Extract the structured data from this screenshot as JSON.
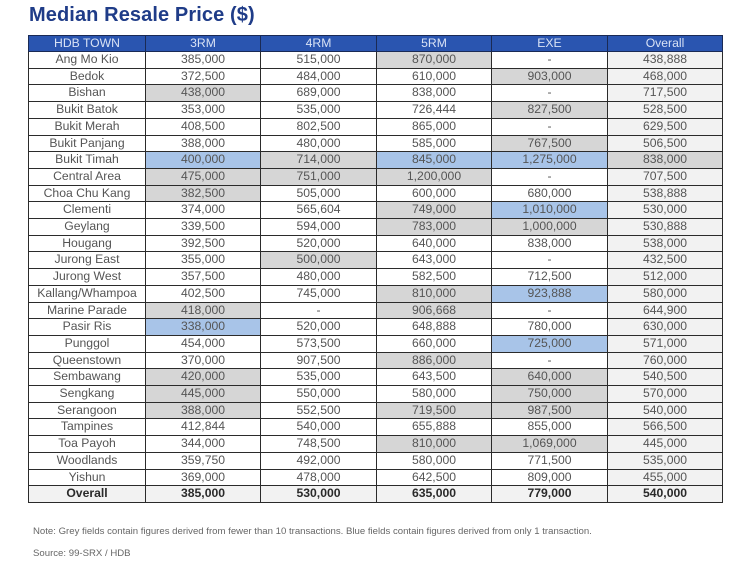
{
  "title": "Median Resale Price ($)",
  "table": {
    "headers": [
      "HDB TOWN",
      "3RM",
      "4RM",
      "5RM",
      "EXE",
      "Overall"
    ],
    "rows": [
      {
        "town": "Ang Mo Kio",
        "cells": [
          "385,000",
          "515,000",
          "870,000",
          "-",
          "438,888"
        ],
        "shade": [
          "",
          "",
          "grey",
          "",
          ""
        ]
      },
      {
        "town": "Bedok",
        "cells": [
          "372,500",
          "484,000",
          "610,000",
          "903,000",
          "468,000"
        ],
        "shade": [
          "",
          "",
          "",
          "grey",
          ""
        ]
      },
      {
        "town": "Bishan",
        "cells": [
          "438,000",
          "689,000",
          "838,000",
          "-",
          "717,500"
        ],
        "shade": [
          "grey",
          "",
          "",
          "",
          ""
        ]
      },
      {
        "town": "Bukit Batok",
        "cells": [
          "353,000",
          "535,000",
          "726,444",
          "827,500",
          "528,500"
        ],
        "shade": [
          "",
          "",
          "",
          "grey",
          ""
        ]
      },
      {
        "town": "Bukit Merah",
        "cells": [
          "408,500",
          "802,500",
          "865,000",
          "-",
          "629,500"
        ],
        "shade": [
          "",
          "",
          "",
          "",
          ""
        ]
      },
      {
        "town": "Bukit Panjang",
        "cells": [
          "388,000",
          "480,000",
          "585,000",
          "767,500",
          "506,500"
        ],
        "shade": [
          "",
          "",
          "",
          "grey",
          ""
        ]
      },
      {
        "town": "Bukit Timah",
        "cells": [
          "400,000",
          "714,000",
          "845,000",
          "1,275,000",
          "838,000"
        ],
        "shade": [
          "blue",
          "grey",
          "blue",
          "blue",
          "grey"
        ]
      },
      {
        "town": "Central Area",
        "cells": [
          "475,000",
          "751,000",
          "1,200,000",
          "-",
          "707,500"
        ],
        "shade": [
          "grey",
          "grey",
          "grey",
          "",
          ""
        ]
      },
      {
        "town": "Choa Chu Kang",
        "cells": [
          "382,500",
          "505,000",
          "600,000",
          "680,000",
          "538,888"
        ],
        "shade": [
          "grey",
          "",
          "",
          "",
          ""
        ]
      },
      {
        "town": "Clementi",
        "cells": [
          "374,000",
          "565,604",
          "749,000",
          "1,010,000",
          "530,000"
        ],
        "shade": [
          "",
          "",
          "grey",
          "blue",
          ""
        ]
      },
      {
        "town": "Geylang",
        "cells": [
          "339,500",
          "594,000",
          "783,000",
          "1,000,000",
          "530,888"
        ],
        "shade": [
          "",
          "",
          "grey",
          "grey",
          ""
        ]
      },
      {
        "town": "Hougang",
        "cells": [
          "392,500",
          "520,000",
          "640,000",
          "838,000",
          "538,000"
        ],
        "shade": [
          "",
          "",
          "",
          "",
          ""
        ]
      },
      {
        "town": "Jurong East",
        "cells": [
          "355,000",
          "500,000",
          "643,000",
          "-",
          "432,500"
        ],
        "shade": [
          "",
          "grey",
          "",
          "",
          ""
        ]
      },
      {
        "town": "Jurong West",
        "cells": [
          "357,500",
          "480,000",
          "582,500",
          "712,500",
          "512,000"
        ],
        "shade": [
          "",
          "",
          "",
          "",
          ""
        ]
      },
      {
        "town": "Kallang/Whampoa",
        "cells": [
          "402,500",
          "745,000",
          "810,000",
          "923,888",
          "580,000"
        ],
        "shade": [
          "",
          "",
          "grey",
          "blue",
          ""
        ]
      },
      {
        "town": "Marine Parade",
        "cells": [
          "418,000",
          "-",
          "906,668",
          "-",
          "644,900"
        ],
        "shade": [
          "grey",
          "",
          "grey",
          "",
          ""
        ]
      },
      {
        "town": "Pasir Ris",
        "cells": [
          "338,000",
          "520,000",
          "648,888",
          "780,000",
          "630,000"
        ],
        "shade": [
          "blue",
          "",
          "",
          "",
          ""
        ]
      },
      {
        "town": "Punggol",
        "cells": [
          "454,000",
          "573,500",
          "660,000",
          "725,000",
          "571,000"
        ],
        "shade": [
          "",
          "",
          "",
          "blue",
          ""
        ]
      },
      {
        "town": "Queenstown",
        "cells": [
          "370,000",
          "907,500",
          "886,000",
          "-",
          "760,000"
        ],
        "shade": [
          "",
          "",
          "grey",
          "",
          ""
        ]
      },
      {
        "town": "Sembawang",
        "cells": [
          "420,000",
          "535,000",
          "643,500",
          "640,000",
          "540,500"
        ],
        "shade": [
          "grey",
          "",
          "",
          "grey",
          ""
        ]
      },
      {
        "town": "Sengkang",
        "cells": [
          "445,000",
          "550,000",
          "580,000",
          "750,000",
          "570,000"
        ],
        "shade": [
          "grey",
          "",
          "",
          "grey",
          ""
        ]
      },
      {
        "town": "Serangoon",
        "cells": [
          "388,000",
          "552,500",
          "719,500",
          "987,500",
          "540,000"
        ],
        "shade": [
          "grey",
          "",
          "grey",
          "grey",
          ""
        ]
      },
      {
        "town": "Tampines",
        "cells": [
          "412,844",
          "540,000",
          "655,888",
          "855,000",
          "566,500"
        ],
        "shade": [
          "",
          "",
          "",
          "",
          ""
        ]
      },
      {
        "town": "Toa Payoh",
        "cells": [
          "344,000",
          "748,500",
          "810,000",
          "1,069,000",
          "445,000"
        ],
        "shade": [
          "",
          "",
          "grey",
          "grey",
          ""
        ]
      },
      {
        "town": "Woodlands",
        "cells": [
          "359,750",
          "492,000",
          "580,000",
          "771,500",
          "535,000"
        ],
        "shade": [
          "",
          "",
          "",
          "",
          ""
        ]
      },
      {
        "town": "Yishun",
        "cells": [
          "369,000",
          "478,000",
          "642,500",
          "809,000",
          "455,000"
        ],
        "shade": [
          "",
          "",
          "",
          "",
          ""
        ]
      }
    ],
    "total": {
      "town": "Overall",
      "cells": [
        "385,000",
        "530,000",
        "635,000",
        "779,000",
        "540,000"
      ]
    }
  },
  "note": "Note: Grey fields contain figures derived from fewer than 10 transactions. Blue fields contain figures derived from only 1 transaction.",
  "source": "Source: 99-SRX / HDB",
  "colors": {
    "title": "#1f3c88",
    "header_bg": "#2a55b0",
    "grey_field": "#d6d6d6",
    "blue_field": "#a8c4e8",
    "overall_col": "#f2f2f2"
  }
}
